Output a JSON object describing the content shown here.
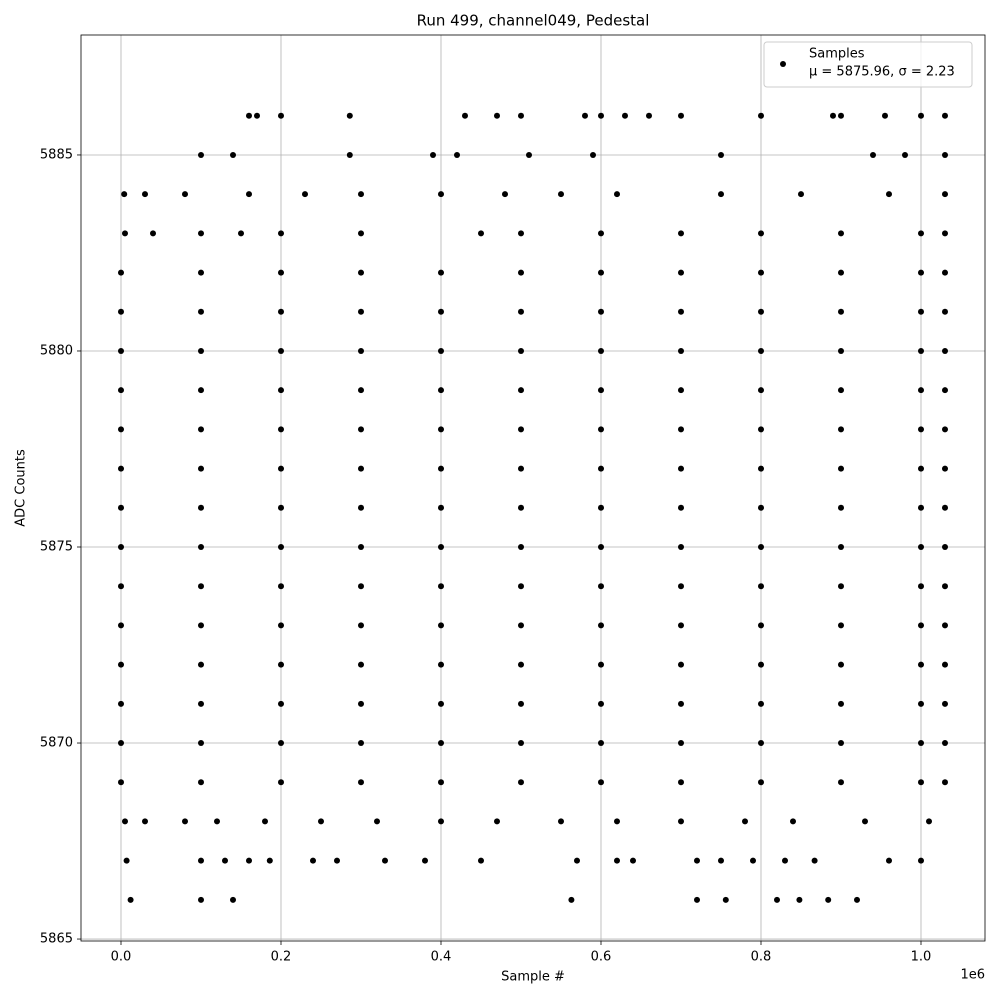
{
  "chart_data": {
    "type": "scatter",
    "title": "Run 499, channel049, Pedestal",
    "x_label": "Sample #",
    "y_label": "ADC Counts",
    "x_offset_label": "1e6",
    "xlim": [
      -0.05,
      1.08
    ],
    "ylim": [
      5864.95,
      5888.06
    ],
    "xticks": [
      {
        "value": 0,
        "label": "0.0"
      },
      0.2,
      0.4,
      0.6,
      0.8,
      {
        "value": 1,
        "label": "1.0"
      }
    ],
    "yticks": [
      5865,
      5870,
      5875,
      5880,
      5885
    ],
    "grid": true,
    "legend": "upper right",
    "legend_note": "μ = 5875.96, σ = 2.23",
    "series": [
      {
        "name": "Samples",
        "color": "#000000",
        "x": [
          0,
          0.1,
          0.2,
          0.3,
          0.4,
          0.5,
          0.6,
          0.7,
          0.8,
          0.9,
          1,
          1.03,
          0,
          0.1,
          0.2,
          0.3,
          0.4,
          0.5,
          0.6,
          0.7,
          0.8,
          0.9,
          1,
          1.03,
          0,
          0.1,
          0.2,
          0.3,
          0.4,
          0.5,
          0.6,
          0.7,
          0.8,
          0.9,
          1,
          1.03,
          0,
          0.1,
          0.2,
          0.3,
          0.4,
          0.5,
          0.6,
          0.7,
          0.8,
          0.9,
          1,
          1.03,
          0,
          0.1,
          0.2,
          0.3,
          0.4,
          0.5,
          0.6,
          0.7,
          0.8,
          0.9,
          1,
          1.03,
          0,
          0.1,
          0.2,
          0.3,
          0.4,
          0.5,
          0.6,
          0.7,
          0.8,
          0.9,
          1,
          1.03,
          0,
          0.1,
          0.2,
          0.3,
          0.4,
          0.5,
          0.6,
          0.7,
          0.8,
          0.9,
          1,
          1.03,
          0,
          0.1,
          0.2,
          0.3,
          0.4,
          0.5,
          0.6,
          0.7,
          0.8,
          0.9,
          1,
          1.03,
          0,
          0.1,
          0.2,
          0.3,
          0.4,
          0.5,
          0.6,
          0.7,
          0.8,
          0.9,
          1,
          1.03,
          0,
          0.1,
          0.2,
          0.3,
          0.4,
          0.5,
          0.6,
          0.7,
          0.8,
          0.9,
          1,
          1.03,
          0,
          0.1,
          0.2,
          0.3,
          0.4,
          0.5,
          0.6,
          0.7,
          0.8,
          0.9,
          1,
          1.03,
          0,
          0.1,
          0.2,
          0.3,
          0.4,
          0.5,
          0.6,
          0.7,
          0.8,
          0.9,
          1,
          1.03,
          0,
          0.1,
          0.2,
          0.3,
          0.4,
          0.5,
          0.6,
          0.7,
          0.8,
          0.9,
          1,
          1.03,
          0,
          0.1,
          0.2,
          0.3,
          0.4,
          0.5,
          0.6,
          0.7,
          0.8,
          0.9,
          1,
          1.03,
          0.005,
          0.04,
          0.1,
          0.15,
          0.2,
          0.3,
          0.45,
          0.5,
          0.6,
          0.7,
          0.8,
          0.9,
          1,
          1.03,
          0.004,
          0.03,
          0.08,
          0.16,
          0.23,
          0.3,
          0.4,
          0.48,
          0.55,
          0.62,
          0.75,
          0.85,
          0.96,
          1.03,
          0.1,
          0.14,
          0.286,
          0.39,
          0.42,
          0.51,
          0.59,
          0.75,
          0.94,
          0.98,
          1.03,
          0.16,
          0.17,
          0.2,
          0.286,
          0.43,
          0.47,
          0.5,
          0.58,
          0.6,
          0.63,
          0.66,
          0.7,
          0.8,
          0.89,
          0.9,
          0.955,
          1,
          1.03,
          0.005,
          0.03,
          0.08,
          0.12,
          0.18,
          0.25,
          0.32,
          0.4,
          0.47,
          0.55,
          0.62,
          0.7,
          0.78,
          0.84,
          0.93,
          1.01,
          0.007,
          0.1,
          0.13,
          0.16,
          0.186,
          0.24,
          0.27,
          0.33,
          0.38,
          0.45,
          0.57,
          0.62,
          0.64,
          0.72,
          0.75,
          0.79,
          0.83,
          0.867,
          0.96,
          1,
          0.012,
          0.1,
          0.14,
          0.563,
          0.72,
          0.756,
          0.82,
          0.848,
          0.884,
          0.92
        ],
        "values": [
          5869,
          5869,
          5869,
          5869,
          5869,
          5869,
          5869,
          5869,
          5869,
          5869,
          5869,
          5869,
          5870,
          5870,
          5870,
          5870,
          5870,
          5870,
          5870,
          5870,
          5870,
          5870,
          5870,
          5870,
          5871,
          5871,
          5871,
          5871,
          5871,
          5871,
          5871,
          5871,
          5871,
          5871,
          5871,
          5871,
          5872,
          5872,
          5872,
          5872,
          5872,
          5872,
          5872,
          5872,
          5872,
          5872,
          5872,
          5872,
          5873,
          5873,
          5873,
          5873,
          5873,
          5873,
          5873,
          5873,
          5873,
          5873,
          5873,
          5873,
          5874,
          5874,
          5874,
          5874,
          5874,
          5874,
          5874,
          5874,
          5874,
          5874,
          5874,
          5874,
          5875,
          5875,
          5875,
          5875,
          5875,
          5875,
          5875,
          5875,
          5875,
          5875,
          5875,
          5875,
          5876,
          5876,
          5876,
          5876,
          5876,
          5876,
          5876,
          5876,
          5876,
          5876,
          5876,
          5876,
          5877,
          5877,
          5877,
          5877,
          5877,
          5877,
          5877,
          5877,
          5877,
          5877,
          5877,
          5877,
          5878,
          5878,
          5878,
          5878,
          5878,
          5878,
          5878,
          5878,
          5878,
          5878,
          5878,
          5878,
          5879,
          5879,
          5879,
          5879,
          5879,
          5879,
          5879,
          5879,
          5879,
          5879,
          5879,
          5879,
          5880,
          5880,
          5880,
          5880,
          5880,
          5880,
          5880,
          5880,
          5880,
          5880,
          5880,
          5880,
          5881,
          5881,
          5881,
          5881,
          5881,
          5881,
          5881,
          5881,
          5881,
          5881,
          5881,
          5881,
          5882,
          5882,
          5882,
          5882,
          5882,
          5882,
          5882,
          5882,
          5882,
          5882,
          5882,
          5882,
          5883,
          5883,
          5883,
          5883,
          5883,
          5883,
          5883,
          5883,
          5883,
          5883,
          5883,
          5883,
          5883,
          5883,
          5884,
          5884,
          5884,
          5884,
          5884,
          5884,
          5884,
          5884,
          5884,
          5884,
          5884,
          5884,
          5884,
          5884,
          5885,
          5885,
          5885,
          5885,
          5885,
          5885,
          5885,
          5885,
          5885,
          5885,
          5885,
          5886,
          5886,
          5886,
          5886,
          5886,
          5886,
          5886,
          5886,
          5886,
          5886,
          5886,
          5886,
          5886,
          5886,
          5886,
          5886,
          5886,
          5886,
          5868,
          5868,
          5868,
          5868,
          5868,
          5868,
          5868,
          5868,
          5868,
          5868,
          5868,
          5868,
          5868,
          5868,
          5868,
          5868,
          5867,
          5867,
          5867,
          5867,
          5867,
          5867,
          5867,
          5867,
          5867,
          5867,
          5867,
          5867,
          5867,
          5867,
          5867,
          5867,
          5867,
          5867,
          5867,
          5867,
          5866,
          5866,
          5866,
          5866,
          5866,
          5866,
          5866,
          5866,
          5866,
          5866
        ]
      }
    ]
  }
}
